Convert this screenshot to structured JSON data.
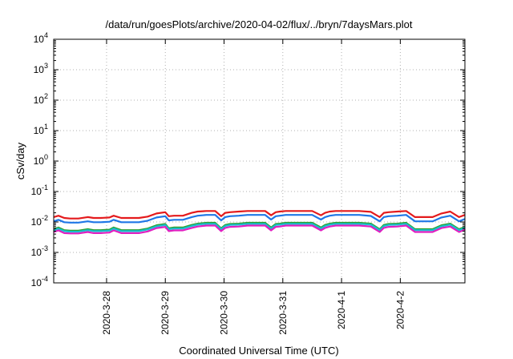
{
  "chart_data": {
    "type": "line",
    "title": "/data/run/goesPlots/archive/2020-04-02/flux/../bryn/7daysMars.plot",
    "xlabel": "Coordinated Universal Time (UTC)",
    "ylabel": "cSv/day",
    "x_range_days": [
      0,
      7
    ],
    "x_ticks": [
      {
        "label": "2020-3-28",
        "day": 0.9
      },
      {
        "label": "2020-3-29",
        "day": 1.9
      },
      {
        "label": "2020-3-30",
        "day": 2.9
      },
      {
        "label": "2020-3-31",
        "day": 3.9
      },
      {
        "label": "2020-4-1",
        "day": 4.9
      },
      {
        "label": "2020-4-2",
        "day": 5.9
      }
    ],
    "y_scale": "log",
    "ylim": [
      0.0001,
      10000
    ],
    "y_ticks": [
      {
        "base": "10",
        "exp": "-4",
        "value": 0.0001
      },
      {
        "base": "10",
        "exp": "-3",
        "value": 0.001
      },
      {
        "base": "10",
        "exp": "-2",
        "value": 0.01
      },
      {
        "base": "10",
        "exp": "-1",
        "value": 0.1
      },
      {
        "base": "10",
        "exp": "0",
        "value": 1
      },
      {
        "base": "10",
        "exp": "1",
        "value": 10
      },
      {
        "base": "10",
        "exp": "2",
        "value": 100
      },
      {
        "base": "10",
        "exp": "3",
        "value": 1000
      },
      {
        "base": "10",
        "exp": "4",
        "value": 10000
      }
    ],
    "grid": true,
    "x": [
      0.0,
      0.08,
      0.18,
      0.28,
      0.42,
      0.58,
      0.68,
      0.8,
      0.95,
      1.02,
      1.15,
      1.3,
      1.45,
      1.6,
      1.75,
      1.9,
      1.96,
      2.05,
      2.2,
      2.35,
      2.45,
      2.6,
      2.75,
      2.85,
      2.92,
      3.0,
      3.15,
      3.3,
      3.45,
      3.6,
      3.7,
      3.78,
      3.85,
      3.95,
      4.1,
      4.25,
      4.4,
      4.55,
      4.62,
      4.7,
      4.8,
      5.0,
      5.2,
      5.4,
      5.55,
      5.62,
      5.7,
      5.85,
      6.0,
      6.15,
      6.3,
      6.45,
      6.6,
      6.75,
      6.9,
      7.0
    ],
    "series": [
      {
        "color": "#e41a1c",
        "values": [
          0.0145,
          0.016,
          0.0135,
          0.013,
          0.013,
          0.0145,
          0.0135,
          0.0135,
          0.014,
          0.016,
          0.0135,
          0.0135,
          0.0135,
          0.015,
          0.019,
          0.021,
          0.0155,
          0.016,
          0.016,
          0.02,
          0.022,
          0.023,
          0.023,
          0.0155,
          0.02,
          0.021,
          0.022,
          0.023,
          0.023,
          0.023,
          0.0165,
          0.021,
          0.022,
          0.023,
          0.023,
          0.023,
          0.023,
          0.0165,
          0.02,
          0.022,
          0.023,
          0.023,
          0.023,
          0.0215,
          0.0145,
          0.02,
          0.021,
          0.022,
          0.023,
          0.0145,
          0.0145,
          0.0145,
          0.019,
          0.022,
          0.0145,
          0.017
        ]
      },
      {
        "color": "#1f77e6",
        "values": [
          0.0105,
          0.0118,
          0.0098,
          0.0095,
          0.0095,
          0.0105,
          0.0098,
          0.0098,
          0.0102,
          0.0118,
          0.0098,
          0.0098,
          0.0098,
          0.011,
          0.014,
          0.0155,
          0.0113,
          0.0118,
          0.0118,
          0.0145,
          0.016,
          0.017,
          0.017,
          0.0113,
          0.0145,
          0.0155,
          0.016,
          0.017,
          0.017,
          0.017,
          0.012,
          0.0155,
          0.016,
          0.017,
          0.017,
          0.017,
          0.017,
          0.012,
          0.0145,
          0.016,
          0.017,
          0.017,
          0.017,
          0.0158,
          0.0105,
          0.0145,
          0.0155,
          0.016,
          0.017,
          0.0105,
          0.0105,
          0.0105,
          0.014,
          0.016,
          0.0105,
          0.0125
        ]
      },
      {
        "color": "#2ca02c",
        "values": [
          0.0058,
          0.0066,
          0.0054,
          0.0052,
          0.0052,
          0.0058,
          0.0054,
          0.0054,
          0.0056,
          0.0066,
          0.0054,
          0.0054,
          0.0054,
          0.0061,
          0.0078,
          0.0086,
          0.0062,
          0.0066,
          0.0066,
          0.008,
          0.0088,
          0.0094,
          0.0094,
          0.0062,
          0.008,
          0.0086,
          0.0088,
          0.0094,
          0.0094,
          0.0094,
          0.0066,
          0.0086,
          0.0088,
          0.0094,
          0.0094,
          0.0094,
          0.0094,
          0.0066,
          0.008,
          0.0088,
          0.0094,
          0.0094,
          0.0094,
          0.0088,
          0.0058,
          0.008,
          0.0086,
          0.0088,
          0.0094,
          0.0058,
          0.0058,
          0.0058,
          0.0078,
          0.0088,
          0.0058,
          0.0069
        ]
      },
      {
        "color": "#17becf",
        "values": [
          0.0054,
          0.0061,
          0.005,
          0.0048,
          0.0048,
          0.0054,
          0.005,
          0.005,
          0.0052,
          0.0061,
          0.005,
          0.005,
          0.005,
          0.0057,
          0.0072,
          0.008,
          0.0058,
          0.0061,
          0.0061,
          0.0074,
          0.0082,
          0.0087,
          0.0087,
          0.0058,
          0.0074,
          0.008,
          0.0082,
          0.0087,
          0.0087,
          0.0087,
          0.0061,
          0.008,
          0.0082,
          0.0087,
          0.0087,
          0.0087,
          0.0087,
          0.0061,
          0.0074,
          0.0082,
          0.0087,
          0.0087,
          0.0087,
          0.0082,
          0.0054,
          0.0074,
          0.008,
          0.0082,
          0.0087,
          0.0054,
          0.0054,
          0.0054,
          0.0072,
          0.0082,
          0.0054,
          0.0064
        ]
      },
      {
        "color": "#e01ec0",
        "values": [
          0.0047,
          0.0053,
          0.0043,
          0.0042,
          0.0042,
          0.0047,
          0.0043,
          0.0043,
          0.0045,
          0.0053,
          0.0043,
          0.0043,
          0.0043,
          0.0049,
          0.0063,
          0.0069,
          0.005,
          0.0053,
          0.0053,
          0.0064,
          0.0071,
          0.0076,
          0.0076,
          0.005,
          0.0064,
          0.0069,
          0.0071,
          0.0076,
          0.0076,
          0.0076,
          0.0053,
          0.0069,
          0.0071,
          0.0076,
          0.0076,
          0.0076,
          0.0076,
          0.0053,
          0.0064,
          0.0071,
          0.0076,
          0.0076,
          0.0076,
          0.0071,
          0.0047,
          0.0064,
          0.0069,
          0.0071,
          0.0076,
          0.0047,
          0.0047,
          0.0047,
          0.0063,
          0.0071,
          0.0047,
          0.0056
        ]
      }
    ]
  }
}
